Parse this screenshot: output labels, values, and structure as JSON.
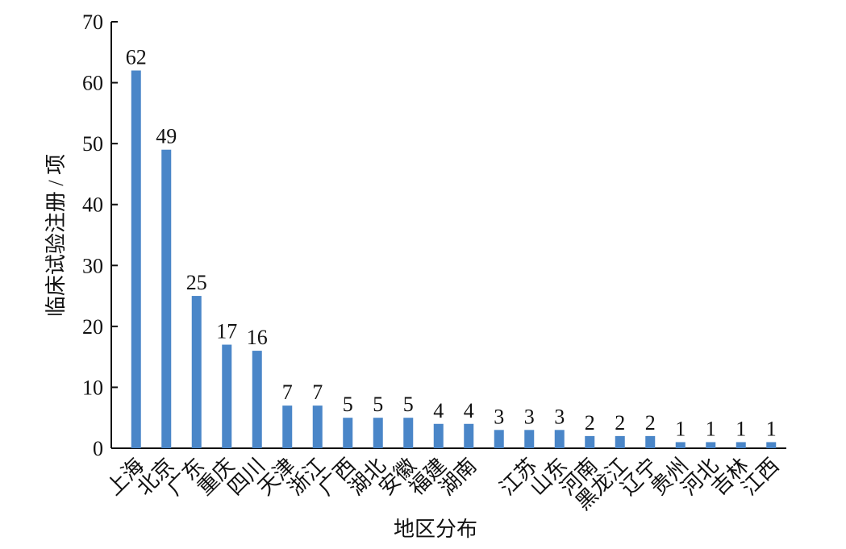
{
  "chart_data": {
    "type": "bar",
    "x_label": "地区分布",
    "y_label": "临床试验注册 / 项",
    "categories": [
      "上海",
      "北京",
      "广东",
      "重庆",
      "四川",
      "天津",
      "浙江",
      "广西",
      "湖北",
      "安徽",
      "福建",
      "湖南",
      null,
      "江苏",
      "山东",
      "河南",
      "黑龙江",
      "辽宁",
      "贵州",
      "河北",
      "吉林",
      "江西"
    ],
    "values": [
      62,
      49,
      25,
      17,
      16,
      7,
      7,
      5,
      5,
      5,
      4,
      4,
      3,
      3,
      3,
      2,
      2,
      2,
      1,
      1,
      1,
      1
    ],
    "color": "#4a86c8",
    "ylim": [
      0,
      70
    ],
    "yticks": [
      0,
      10,
      20,
      30,
      40,
      50,
      60,
      70
    ]
  }
}
